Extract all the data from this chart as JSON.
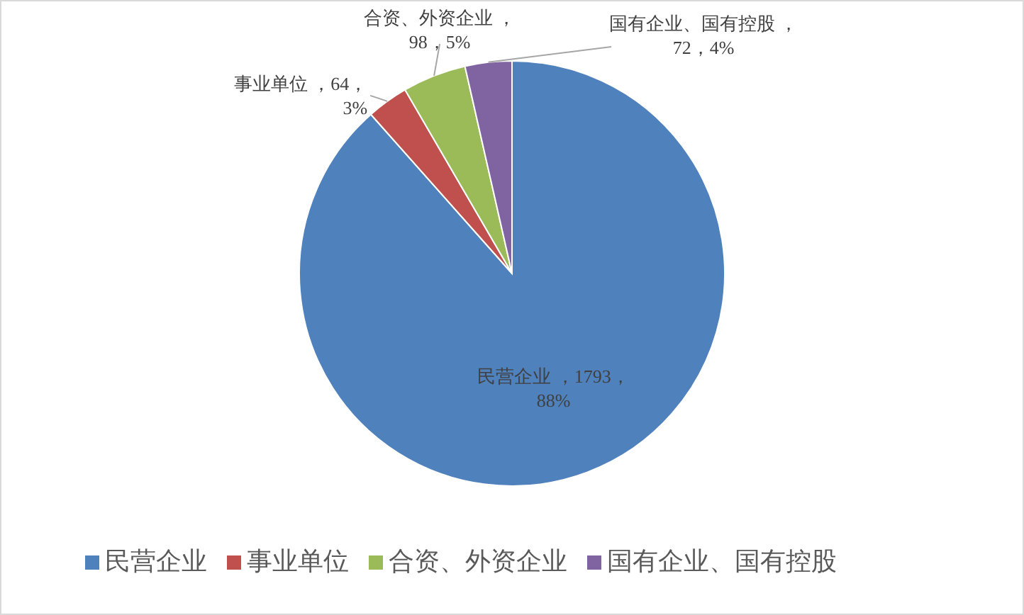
{
  "chart_data": {
    "type": "pie",
    "categories": [
      "民营企业",
      "事业单位",
      "合资、外资企业",
      "国有企业、国有控股"
    ],
    "values": [
      1793,
      64,
      98,
      72
    ],
    "colors": [
      "#4f81bd",
      "#c0504d",
      "#9bbb59",
      "#8064a2"
    ],
    "value_labels": [
      "民营企业 ，1793，\n88%",
      "事业单位 ，64，\n3%",
      "合资、外资企业 ，\n98，5%",
      "国有企业、国有控股 ，\n72，4%"
    ],
    "legend": "bottom"
  }
}
